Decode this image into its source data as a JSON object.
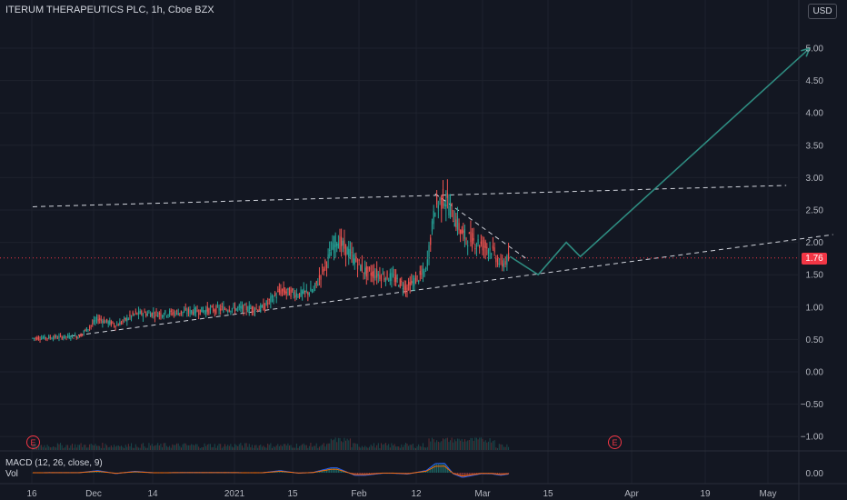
{
  "header": {
    "title": "ITERUM THERAPEUTICS PLC, 1h, Cboe BZX",
    "currency": "USD"
  },
  "indicator": {
    "macd_label": "MACD (12, 26, close, 9)",
    "vol_label": "Vol"
  },
  "earnings_marker": "E",
  "last_price": "1.76",
  "colors": {
    "background": "#131722",
    "up": "#26a69a",
    "down": "#ef5350",
    "projection": "#2e8b80",
    "last_price": "#f23645"
  },
  "chart_data": {
    "type": "candlestick",
    "title": "ITERUM THERAPEUTICS PLC, 1h, Cboe BZX",
    "y_ticks": [
      "5.00",
      "4.50",
      "4.00",
      "3.50",
      "3.00",
      "2.50",
      "2.00",
      "1.50",
      "1.00",
      "0.50",
      "0.00",
      "−0.50",
      "−1.00"
    ],
    "ylim": [
      -1.1,
      5.2
    ],
    "x_ticks": [
      "16",
      "Dec",
      "14",
      "2021",
      "15",
      "Feb",
      "12",
      "Mar",
      "15",
      "Apr",
      "19",
      "May"
    ],
    "macd_ticks": [
      "0.00"
    ],
    "price_path": [
      {
        "x": "Nov 16",
        "y": 0.52
      },
      {
        "x": "Nov 26",
        "y": 0.55
      },
      {
        "x": "Nov 30",
        "y": 0.82
      },
      {
        "x": "Dec 4",
        "y": 0.72
      },
      {
        "x": "Dec 8",
        "y": 0.9
      },
      {
        "x": "Dec 14",
        "y": 0.9
      },
      {
        "x": "Dec 28",
        "y": 0.98
      },
      {
        "x": "Jan 4",
        "y": 0.98
      },
      {
        "x": "Jan 8",
        "y": 1.25
      },
      {
        "x": "Jan 12",
        "y": 1.2
      },
      {
        "x": "Jan 15",
        "y": 1.25
      },
      {
        "x": "Jan 20",
        "y": 2.05
      },
      {
        "x": "Jan 26",
        "y": 1.55
      },
      {
        "x": "Feb 1",
        "y": 1.45
      },
      {
        "x": "Feb 4",
        "y": 1.3
      },
      {
        "x": "Feb 8",
        "y": 1.55
      },
      {
        "x": "Feb 10",
        "y": 2.55
      },
      {
        "x": "Feb 12",
        "y": 2.7
      },
      {
        "x": "Feb 16",
        "y": 2.1
      },
      {
        "x": "Feb 22",
        "y": 1.9
      },
      {
        "x": "Feb 24",
        "y": 1.65
      },
      {
        "x": "Feb 26",
        "y": 1.76
      }
    ],
    "trendlines": [
      {
        "name": "upper channel",
        "from": {
          "x": "Nov 16",
          "y": 2.55
        },
        "to": {
          "x": "Apr 26",
          "y": 2.88
        }
      },
      {
        "name": "support",
        "from": {
          "x": "Nov 24",
          "y": 0.55
        },
        "to": {
          "x": "May 6",
          "y": 2.12
        }
      },
      {
        "name": "wedge top",
        "from": {
          "x": "Feb 10",
          "y": 2.75
        },
        "to": {
          "x": "Mar 2",
          "y": 1.72
        }
      }
    ],
    "projection": [
      {
        "x": "Feb 26",
        "y": 1.78
      },
      {
        "x": "Mar 4",
        "y": 1.5
      },
      {
        "x": "Mar 10",
        "y": 2.0
      },
      {
        "x": "Mar 13",
        "y": 1.78
      },
      {
        "x": "May 1",
        "y": 5.0
      }
    ],
    "last_price_line": 1.76
  }
}
